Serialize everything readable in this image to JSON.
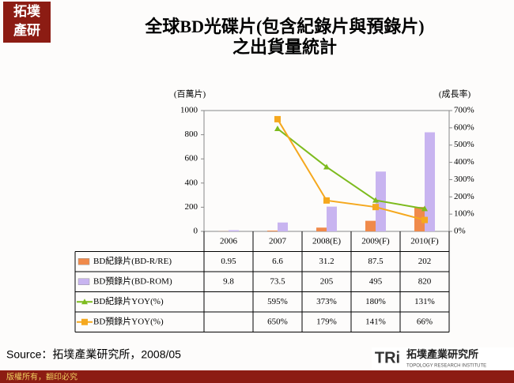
{
  "chart_data": {
    "type": "bar-line",
    "title": "全球BD光碟片(包含紀錄片與預錄片)",
    "subtitle": "之出貨量統計",
    "y_label": "(百萬片)",
    "y2_label": "(成長率)",
    "categories": [
      "2006",
      "2007",
      "2008(E)",
      "2009(F)",
      "2010(F)"
    ],
    "ylim": [
      0,
      1000
    ],
    "yticks": [
      0,
      200,
      400,
      600,
      800,
      1000
    ],
    "y2lim": [
      0,
      700
    ],
    "y2ticks": [
      {
        "value": 0,
        "label": "0%"
      },
      {
        "value": 100,
        "label": "100%"
      },
      {
        "value": 200,
        "label": "200%"
      },
      {
        "value": 300,
        "label": "300%"
      },
      {
        "value": 400,
        "label": "400%"
      },
      {
        "value": 500,
        "label": "500%"
      },
      {
        "value": 600,
        "label": "600%"
      },
      {
        "value": 700,
        "label": "700%"
      }
    ],
    "series": [
      {
        "name": "BD紀錄片(BD-R/RE)",
        "kind": "bar",
        "color": "#f08a4b",
        "values": [
          0.95,
          6.6,
          31.2,
          87.5,
          202
        ]
      },
      {
        "name": "BD預錄片(BD-ROM)",
        "kind": "bar",
        "color": "#c8b4f0",
        "values": [
          9.8,
          73.5,
          205,
          495,
          820
        ]
      },
      {
        "name": "BD紀錄片YOY(%)",
        "kind": "line",
        "marker": "triangle",
        "axis": "y2",
        "color": "#7dbb1e",
        "values": [
          null,
          595,
          373,
          180,
          131
        ],
        "value_labels": [
          null,
          "595%",
          "373%",
          "180%",
          "131%"
        ]
      },
      {
        "name": "BD預錄片YOY(%)",
        "kind": "line",
        "marker": "square",
        "axis": "y2",
        "color": "#f5a81e",
        "values": [
          null,
          650,
          179,
          141,
          66
        ],
        "value_labels": [
          null,
          "650%",
          "179%",
          "141%",
          "66%"
        ]
      }
    ],
    "source": "Source：拓墣產業研究所，2008/05"
  },
  "footer": {
    "copyright": "版權所有，翻印必究",
    "logo_mark": "TRi",
    "logo_name": "拓墣產業研究所",
    "logo_sub": "TOPOLOGY RESEARCH INSTITUTE",
    "corner_top": "拓墣",
    "corner_bottom": "產研"
  }
}
